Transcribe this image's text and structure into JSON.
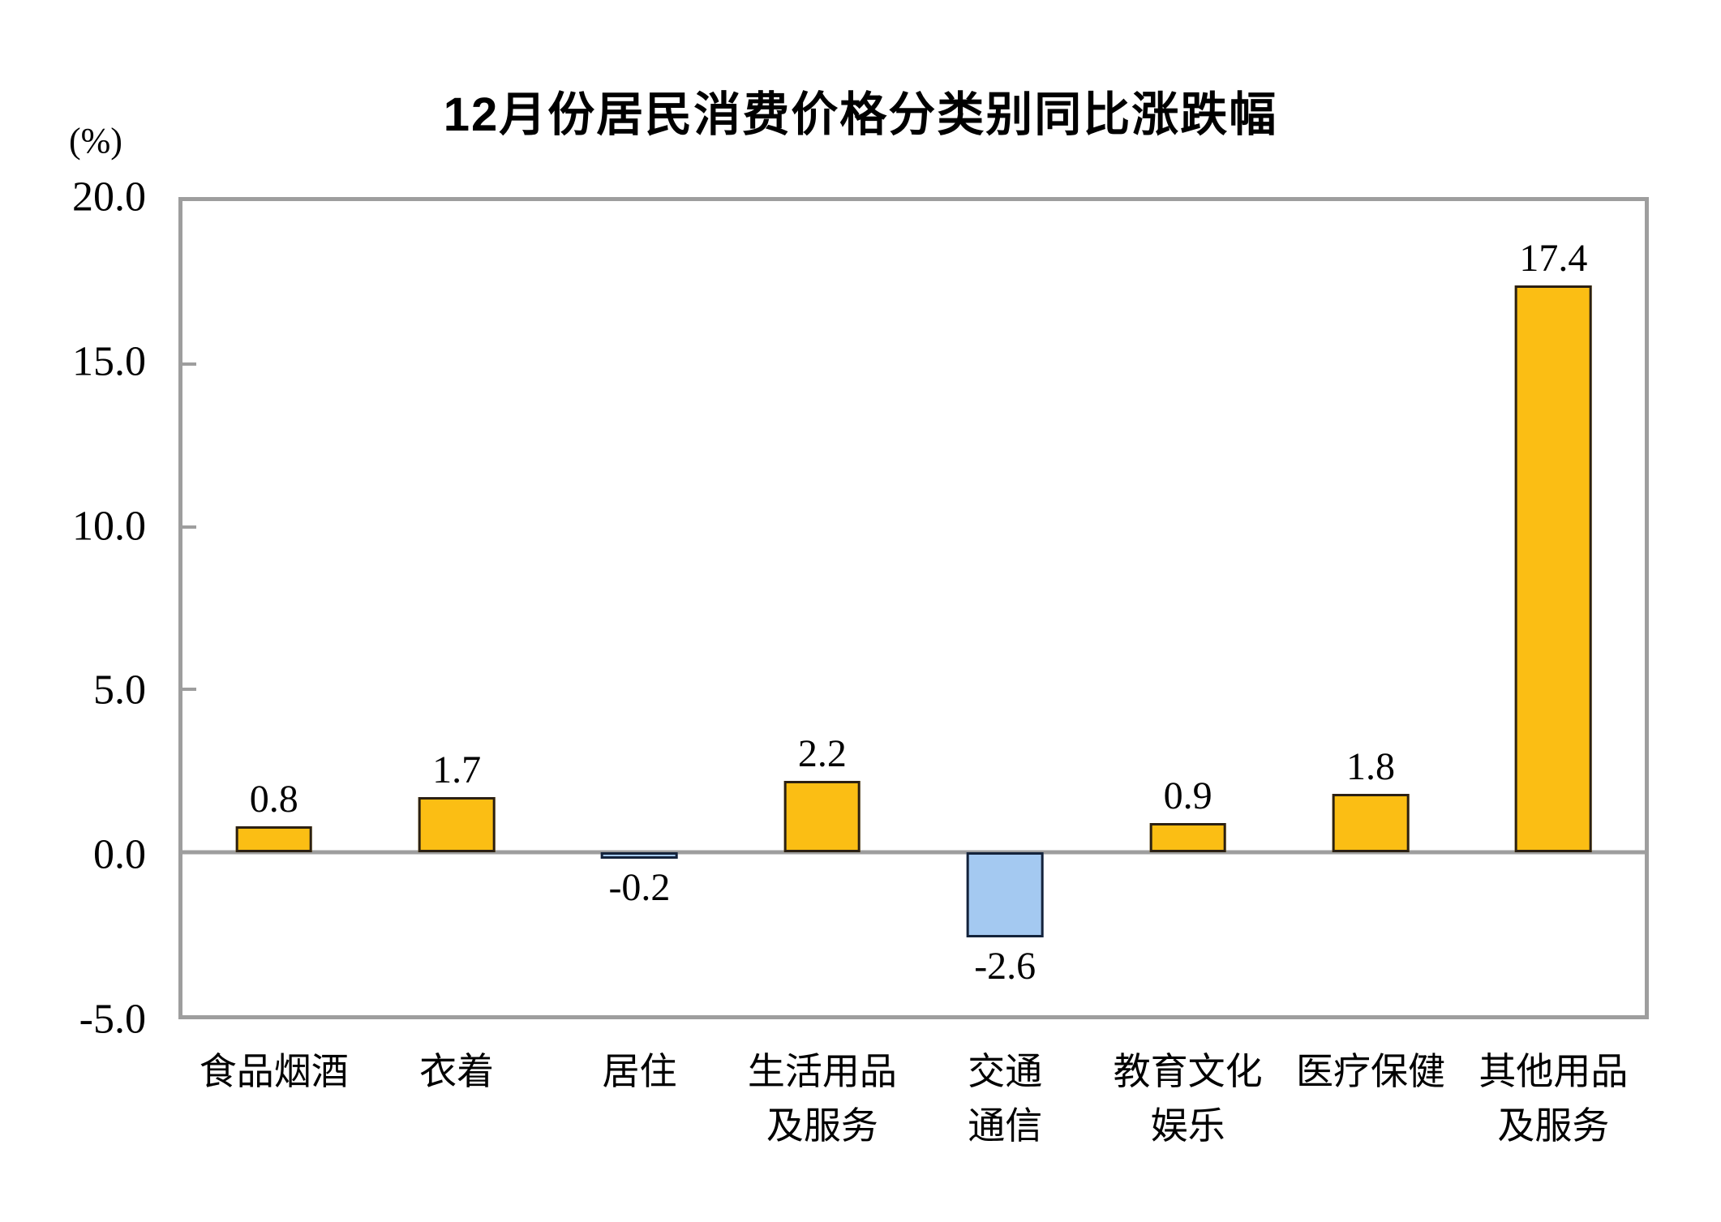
{
  "title": "12月份居民消费价格分类别同比涨跌幅",
  "colors": {
    "positive_fill": "#FBBE14",
    "positive_border": "#2B2013",
    "negative_fill": "#A4C9F1",
    "negative_border": "#14233B",
    "axis": "#9E9E9E",
    "text": "#000000"
  },
  "chart_data": {
    "type": "bar",
    "title": "12月份居民消费价格分类别同比涨跌幅",
    "xlabel": "",
    "ylabel": "(%)",
    "ylim": [
      -5.0,
      20.0
    ],
    "ytick_labels": [
      "20.0",
      "15.0",
      "10.0",
      "5.0",
      "0.0",
      "-5.0"
    ],
    "grid": false,
    "legend_position": "none",
    "categories": [
      "食品烟酒",
      "衣着",
      "居住",
      "生活用品及服务",
      "交通通信",
      "教育文化娱乐",
      "医疗保健",
      "其他用品及服务"
    ],
    "categories_lines": [
      [
        "食品烟酒"
      ],
      [
        "衣着"
      ],
      [
        "居住"
      ],
      [
        "生活用品",
        "及服务"
      ],
      [
        "交通",
        "通信"
      ],
      [
        "教育文化",
        "娱乐"
      ],
      [
        "医疗保健"
      ],
      [
        "其他用品",
        "及服务"
      ]
    ],
    "values": [
      0.8,
      1.7,
      -0.2,
      2.2,
      -2.6,
      0.9,
      1.8,
      17.4
    ],
    "value_labels": [
      "0.8",
      "1.7",
      "-0.2",
      "2.2",
      "-2.6",
      "0.9",
      "1.8",
      "17.4"
    ]
  }
}
